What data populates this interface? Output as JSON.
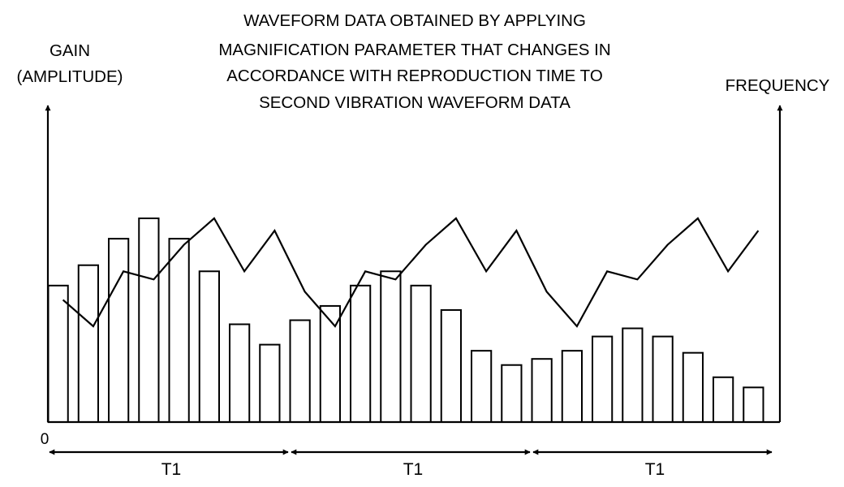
{
  "chart_data": {
    "type": "bar",
    "title_lines": [
      "WAVEFORM DATA OBTAINED BY APPLYING",
      "MAGNIFICATION PARAMETER THAT CHANGES IN",
      "ACCORDANCE WITH REPRODUCTION TIME TO",
      "SECOND VIBRATION WAVEFORM DATA"
    ],
    "ylabel_left": [
      "GAIN",
      "(AMPLITUDE)"
    ],
    "ylabel_right": "FREQUENCY",
    "origin_label": "0",
    "ylim": [
      0,
      10
    ],
    "grid": false,
    "legend": "none",
    "bars": {
      "name": "gain",
      "values": [
        6.7,
        7.7,
        9.0,
        10.0,
        9.0,
        7.4,
        4.8,
        3.8,
        5.0,
        5.7,
        6.7,
        7.4,
        6.7,
        5.5,
        3.5,
        2.8,
        3.1,
        3.5,
        4.2,
        4.6,
        4.2,
        3.4,
        2.2,
        1.7
      ]
    },
    "line": {
      "name": "frequency",
      "x": [
        0.5,
        1.5,
        2.5,
        3.5,
        4.5,
        5.5,
        6.5,
        7.5,
        8.5,
        9.5,
        10.5,
        11.5,
        12.5,
        13.5,
        14.5,
        15.5,
        16.5,
        17.5,
        18.5,
        19.5,
        20.5,
        21.5,
        22.5,
        23.5
      ],
      "values": [
        6.0,
        4.7,
        7.4,
        7.0,
        8.7,
        10.0,
        7.4,
        9.4,
        6.4,
        4.7,
        7.4,
        7.0,
        8.7,
        10.0,
        7.4,
        9.4,
        6.4,
        4.7,
        7.4,
        7.0,
        8.7,
        10.0,
        7.4,
        9.4
      ]
    },
    "periods": [
      {
        "label": "T1",
        "start": 0,
        "end": 8
      },
      {
        "label": "T1",
        "start": 8,
        "end": 16
      },
      {
        "label": "T1",
        "start": 16,
        "end": 24
      }
    ]
  }
}
